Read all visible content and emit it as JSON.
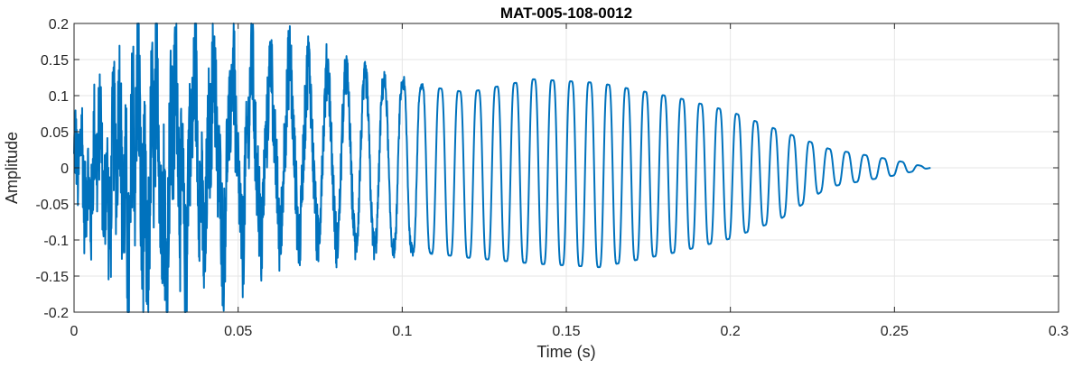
{
  "chart_data": {
    "type": "line",
    "title": "MAT-005-108-0012",
    "xlabel": "Time (s)",
    "ylabel": "Amplitude",
    "xlim": [
      0,
      0.3
    ],
    "ylim": [
      -0.2,
      0.2
    ],
    "xticks": [
      0,
      0.05,
      0.1,
      0.15,
      0.2,
      0.25,
      0.3
    ],
    "xtick_labels": [
      "0",
      "0.05",
      "0.1",
      "0.15",
      "0.2",
      "0.25",
      "0.3"
    ],
    "yticks": [
      -0.2,
      -0.15,
      -0.1,
      -0.05,
      0,
      0.05,
      0.1,
      0.15,
      0.2
    ],
    "ytick_labels": [
      "-0.2",
      "-0.15",
      "-0.1",
      "-0.05",
      "0",
      "0.05",
      "0.1",
      "0.15",
      "0.2"
    ],
    "grid": true,
    "line_color": "#0072BD",
    "series": [
      {
        "duration_s": 0.261,
        "envelope": [
          {
            "t": 0.0,
            "pos": 0.06,
            "neg": -0.08
          },
          {
            "t": 0.01,
            "pos": 0.1,
            "neg": -0.1
          },
          {
            "t": 0.02,
            "pos": 0.17,
            "neg": -0.2
          },
          {
            "t": 0.04,
            "pos": 0.17,
            "neg": -0.15
          },
          {
            "t": 0.065,
            "pos": 0.175,
            "neg": -0.12
          },
          {
            "t": 0.09,
            "pos": 0.14,
            "neg": -0.125
          },
          {
            "t": 0.12,
            "pos": 0.12,
            "neg": -0.14
          },
          {
            "t": 0.14,
            "pos": 0.14,
            "neg": -0.15
          },
          {
            "t": 0.16,
            "pos": 0.135,
            "neg": -0.155
          },
          {
            "t": 0.185,
            "pos": 0.11,
            "neg": -0.13
          },
          {
            "t": 0.2,
            "pos": 0.09,
            "neg": -0.11
          },
          {
            "t": 0.215,
            "pos": 0.06,
            "neg": -0.08
          },
          {
            "t": 0.23,
            "pos": 0.03,
            "neg": -0.03
          },
          {
            "t": 0.25,
            "pos": 0.012,
            "neg": -0.012
          },
          {
            "t": 0.261,
            "pos": 0.0,
            "neg": 0.0
          }
        ],
        "dominant_frequency_hz": 170
      }
    ]
  }
}
